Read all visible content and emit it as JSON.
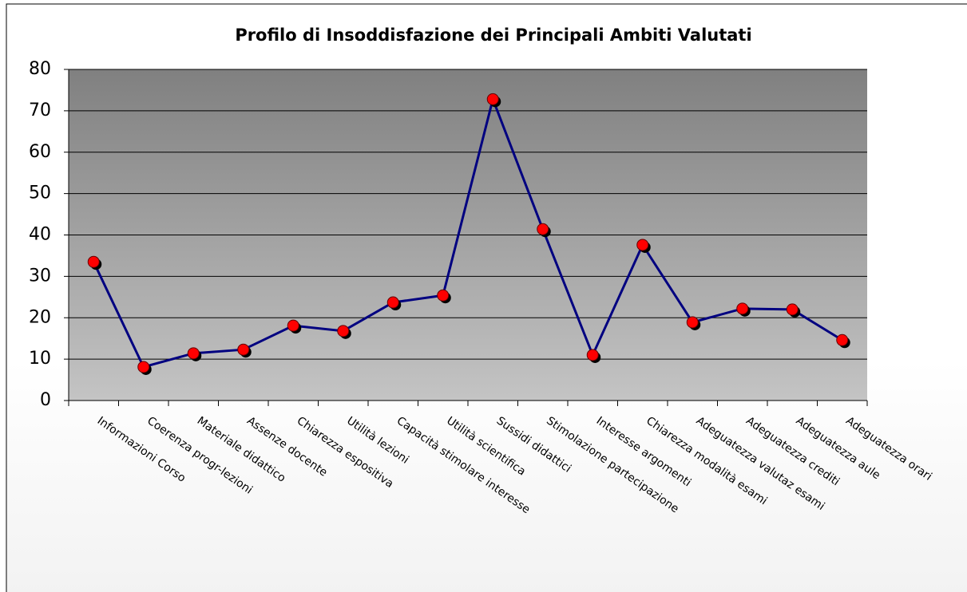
{
  "chart_data": {
    "type": "line",
    "title": "Profilo di Insoddisfazione dei Principali Ambiti Valutati",
    "categories": [
      "Informazioni Corso",
      "Coerenza progr-lezioni",
      "Materiale didattico",
      "Assenze docente",
      "Chiarezza espositiva",
      "Utilità lezioni",
      "Capacità stimolare interesse",
      "Utilità scientifica",
      "Sussidi didattici",
      "Stimolazione partecipazione",
      "Interesse argomenti",
      "Chiarezza modalità esami",
      "Adeguatezza valutaz esami",
      "Adeguatezza crediti",
      "Adeguatezza aule",
      "Adeguatezza orari"
    ],
    "series": [
      {
        "color": "#000080",
        "marker_color": "#ff0000",
        "values": [
          33.5,
          8.1,
          11.4,
          12.3,
          18.1,
          16.8,
          23.7,
          25.4,
          72.8,
          41.4,
          11.0,
          37.6,
          18.9,
          22.2,
          22.0,
          14.6
        ]
      }
    ],
    "ylim": [
      0,
      80
    ],
    "yticks": [
      0,
      10,
      20,
      30,
      40,
      50,
      60,
      70,
      80
    ],
    "grid": true
  }
}
